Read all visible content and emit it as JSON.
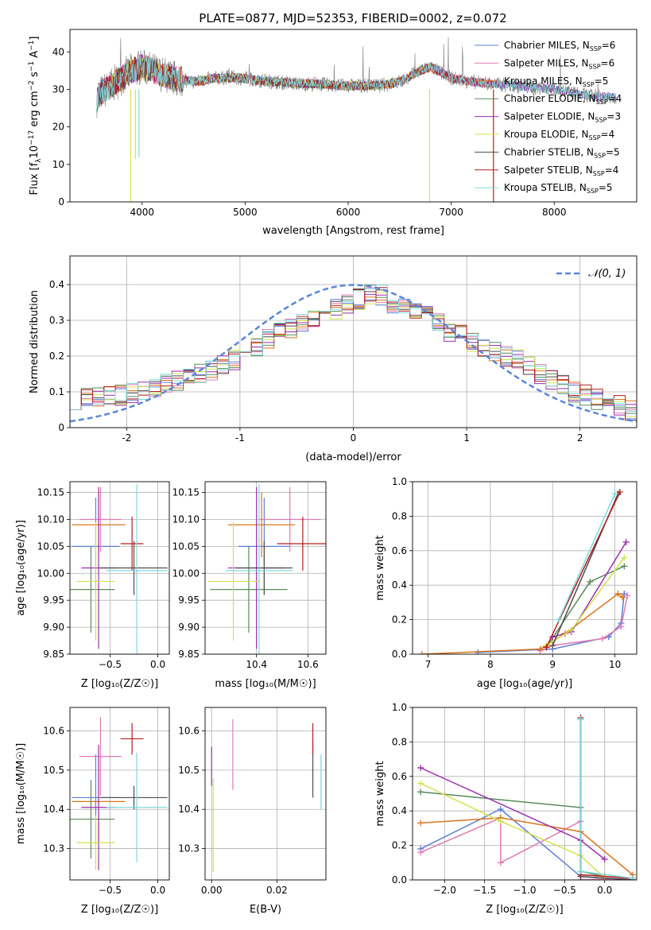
{
  "figure_title": "PLATE=0877, MJD=52353, FIBERID=0002, z=0.072",
  "colors": {
    "Chabrier MILES": "#5b7fd6",
    "Salpeter MILES": "#e07ab3",
    "Kroupa MILES": "#d9761e",
    "Chabrier ELODIE": "#5a8a5a",
    "Salpeter ELODIE": "#9b2fae",
    "Kroupa ELODIE": "#d6e04a",
    "Chabrier STELIB": "#4d4d4d",
    "Salpeter STELIB": "#b41e1e",
    "Kroupa STELIB": "#7fd8dc",
    "normal": "#5b86d8",
    "data_spectrum": "#8a8a8a"
  },
  "chart_data": [
    {
      "id": "spectrum",
      "type": "line",
      "title": "PLATE=0877, MJD=52353, FIBERID=0002, z=0.072",
      "xlabel": "wavelength [Angstrom, rest frame]",
      "ylabel_parts": [
        "Flux [f",
        "λ",
        "10",
        "−17",
        " erg cm",
        "−2",
        " s",
        "−1",
        " A",
        "−1",
        "]"
      ],
      "xlim": [
        3300,
        8800
      ],
      "ylim": [
        0,
        46
      ],
      "xticks": [
        4000,
        5000,
        6000,
        7000,
        8000
      ],
      "yticks": [
        0,
        10,
        20,
        30,
        40
      ],
      "grid": false,
      "legend_position": "top-right",
      "legend": [
        {
          "name": "Chabrier MILES",
          "nssp": "6"
        },
        {
          "name": "Salpeter MILES",
          "nssp": "6"
        },
        {
          "name": "Kroupa MILES",
          "nssp": "5"
        },
        {
          "name": "Chabrier ELODIE",
          "nssp": "4"
        },
        {
          "name": "Salpeter ELODIE",
          "nssp": "3"
        },
        {
          "name": "Kroupa ELODIE",
          "nssp": "4"
        },
        {
          "name": "Chabrier STELIB",
          "nssp": "5"
        },
        {
          "name": "Salpeter STELIB",
          "nssp": "4"
        },
        {
          "name": "Kroupa STELIB",
          "nssp": "5"
        }
      ],
      "continuum_wavelength": [
        3550,
        3600,
        3700,
        3800,
        3900,
        4000,
        4100,
        4200,
        4300,
        4400,
        4500,
        4700,
        4900,
        5100,
        5300,
        5500,
        5700,
        5900,
        6100,
        6300,
        6500,
        6700,
        6800,
        7000,
        7200,
        7400,
        7600,
        7800,
        8000,
        8200,
        8400,
        8500
      ],
      "continuum_flux": [
        27,
        29,
        31,
        33,
        35,
        36,
        35,
        34,
        33,
        32.5,
        32,
        33,
        33.2,
        32.5,
        32,
        31.5,
        31.5,
        31,
        31,
        31,
        32,
        35,
        36,
        33,
        32,
        31.5,
        31,
        30.5,
        30,
        29,
        28,
        28
      ],
      "dips": [
        {
          "x": 3890,
          "y": 0.0,
          "series": "Kroupa ELODIE"
        },
        {
          "x": 3935,
          "y": 11.5,
          "series": "Kroupa ELODIE"
        },
        {
          "x": 3970,
          "y": 12.0,
          "series": "Kroupa STELIB"
        },
        {
          "x": 6790,
          "y": 0.0,
          "series": "Kroupa ELODIE"
        },
        {
          "x": 7410,
          "y": 0.0,
          "series": "Salpeter STELIB"
        }
      ]
    },
    {
      "id": "residuals",
      "type": "histogram",
      "xlabel": "(data-model)/error",
      "ylabel": "Normed distribution",
      "xlim": [
        -2.5,
        2.5
      ],
      "ylim": [
        0,
        0.48
      ],
      "xticks": [
        -2,
        -1,
        0,
        1,
        2
      ],
      "yticks": [
        0.0,
        0.1,
        0.2,
        0.3,
        0.4
      ],
      "grid": true,
      "legend_position": "top-right",
      "normal_label": "𝒩(0, 1)",
      "bin_edges_start": -2.5,
      "bin_width": 0.1,
      "n_bins": 50,
      "base_heights": [
        0.08,
        0.08,
        0.09,
        0.09,
        0.09,
        0.1,
        0.1,
        0.11,
        0.12,
        0.13,
        0.14,
        0.15,
        0.16,
        0.18,
        0.19,
        0.21,
        0.23,
        0.25,
        0.27,
        0.28,
        0.29,
        0.31,
        0.32,
        0.33,
        0.35,
        0.36,
        0.37,
        0.37,
        0.35,
        0.34,
        0.32,
        0.31,
        0.29,
        0.27,
        0.26,
        0.24,
        0.22,
        0.21,
        0.2,
        0.19,
        0.17,
        0.15,
        0.13,
        0.12,
        0.1,
        0.09,
        0.08,
        0.07,
        0.06,
        0.05
      ]
    },
    {
      "id": "age_vs_Z",
      "type": "errorbar",
      "xlabel": "Z [log₁₀(Z/Z☉)]",
      "ylabel": "age  [log₁₀(age/yr)]",
      "xlim": [
        -0.92,
        0.12
      ],
      "ylim": [
        9.85,
        10.17
      ],
      "xticks": [
        -0.5,
        0.0
      ],
      "xticklabels": [
        "−0.5",
        "0.0"
      ],
      "yticks": [
        9.85,
        9.9,
        9.95,
        10.0,
        10.05,
        10.1,
        10.15
      ],
      "yticklabels": [
        "9.85",
        "9.90",
        "9.95",
        "10.00",
        "10.05",
        "10.10",
        "10.15"
      ],
      "points": [
        {
          "series": "Chabrier MILES",
          "x": -0.65,
          "xerr": 0.25,
          "y": 10.05,
          "yerr": 0.09
        },
        {
          "series": "Salpeter MILES",
          "x": -0.6,
          "xerr": 0.22,
          "y": 10.1,
          "yerr": 0.06
        },
        {
          "series": "Kroupa MILES",
          "x": -0.62,
          "xerr": 0.28,
          "y": 10.09,
          "yerr": 0.06
        },
        {
          "series": "Chabrier ELODIE",
          "x": -0.7,
          "xerr": 0.25,
          "y": 9.97,
          "yerr": 0.08
        },
        {
          "series": "Salpeter ELODIE",
          "x": -0.62,
          "xerr": 0.18,
          "y": 10.01,
          "yerr": 0.15
        },
        {
          "series": "Kroupa ELODIE",
          "x": -0.65,
          "xerr": 0.2,
          "y": 9.985,
          "yerr": 0.11
        },
        {
          "series": "Chabrier STELIB",
          "x": -0.25,
          "xerr": 0.35,
          "y": 10.01,
          "yerr": 0.05
        },
        {
          "series": "Salpeter STELIB",
          "x": -0.27,
          "xerr": 0.12,
          "y": 10.055,
          "yerr": 0.05
        },
        {
          "series": "Kroupa STELIB",
          "x": -0.22,
          "xerr": 0.32,
          "y": 10.005,
          "yerr": 0.16
        }
      ]
    },
    {
      "id": "age_vs_mass",
      "type": "errorbar",
      "xlabel": "mass [log₁₀(M/M☉)]",
      "ylabel": "",
      "xlim": [
        10.2,
        10.67
      ],
      "ylim": [
        9.85,
        10.17
      ],
      "xticks": [
        10.4,
        10.6
      ],
      "xticklabels": [
        "10.4",
        "10.6"
      ],
      "yticks": [
        9.85,
        9.9,
        9.95,
        10.0,
        10.05,
        10.1,
        10.15
      ],
      "yticklabels": [
        "9.85",
        "9.90",
        "9.95",
        "10.00",
        "10.05",
        "10.10",
        "10.15"
      ],
      "points": [
        {
          "series": "Chabrier MILES",
          "x": 10.43,
          "xerr": 0.1,
          "y": 10.05,
          "yerr": 0.09
        },
        {
          "series": "Salpeter MILES",
          "x": 10.53,
          "xerr": 0.12,
          "y": 10.1,
          "yerr": 0.06
        },
        {
          "series": "Kroupa MILES",
          "x": 10.42,
          "xerr": 0.13,
          "y": 10.09,
          "yerr": 0.06
        },
        {
          "series": "Chabrier ELODIE",
          "x": 10.37,
          "xerr": 0.15,
          "y": 9.97,
          "yerr": 0.08
        },
        {
          "series": "Salpeter ELODIE",
          "x": 10.4,
          "xerr": 0.11,
          "y": 10.01,
          "yerr": 0.15
        },
        {
          "series": "Kroupa ELODIE",
          "x": 10.31,
          "xerr": 0.1,
          "y": 9.985,
          "yerr": 0.11
        },
        {
          "series": "Chabrier STELIB",
          "x": 10.43,
          "xerr": 0.11,
          "y": 10.01,
          "yerr": 0.05
        },
        {
          "series": "Salpeter STELIB",
          "x": 10.58,
          "xerr": 0.1,
          "y": 10.055,
          "yerr": 0.05
        },
        {
          "series": "Kroupa STELIB",
          "x": 10.41,
          "xerr": 0.13,
          "y": 10.005,
          "yerr": 0.16
        }
      ]
    },
    {
      "id": "weight_vs_age",
      "type": "line",
      "xlabel": "age  [log₁₀(age/yr)]",
      "ylabel": "mass weight",
      "xlim": [
        6.75,
        10.35
      ],
      "ylim": [
        0,
        1.0
      ],
      "xticks": [
        7,
        8,
        9,
        10
      ],
      "xticklabels": [
        "7",
        "8",
        "9",
        "10"
      ],
      "yticks": [
        0,
        0.2,
        0.4,
        0.6,
        0.8,
        1.0
      ],
      "yticklabels": [
        "0.0",
        "0.2",
        "0.4",
        "0.6",
        "0.8",
        "1.0"
      ],
      "grid": true,
      "series": [
        {
          "name": "Chabrier MILES",
          "x": [
            7.8,
            9.0,
            9.9,
            10.1,
            10.15
          ],
          "y": [
            0.01,
            0.03,
            0.1,
            0.18,
            0.35
          ]
        },
        {
          "name": "Salpeter MILES",
          "x": [
            8.8,
            9.0,
            9.8,
            10.1,
            10.2
          ],
          "y": [
            0.02,
            0.05,
            0.09,
            0.16,
            0.34
          ]
        },
        {
          "name": "Kroupa MILES",
          "x": [
            6.9,
            8.8,
            9.2,
            10.05,
            10.12
          ],
          "y": [
            0.0,
            0.03,
            0.12,
            0.35,
            0.33
          ]
        },
        {
          "name": "Chabrier ELODIE",
          "x": [
            8.9,
            9.6,
            10.15
          ],
          "y": [
            0.04,
            0.42,
            0.51
          ]
        },
        {
          "name": "Salpeter ELODIE",
          "x": [
            9.0,
            9.3,
            10.18
          ],
          "y": [
            0.1,
            0.13,
            0.65
          ]
        },
        {
          "name": "Kroupa ELODIE",
          "x": [
            8.9,
            9.3,
            10.15
          ],
          "y": [
            0.05,
            0.14,
            0.56
          ]
        },
        {
          "name": "Chabrier STELIB",
          "x": [
            9.0,
            10.05
          ],
          "y": [
            0.05,
            0.93
          ]
        },
        {
          "name": "Salpeter STELIB",
          "x": [
            8.9,
            10.08
          ],
          "y": [
            0.04,
            0.94
          ]
        },
        {
          "name": "Kroupa STELIB",
          "x": [
            9.1,
            10.0
          ],
          "y": [
            0.2,
            0.93
          ]
        }
      ]
    },
    {
      "id": "mass_vs_Z",
      "type": "errorbar",
      "xlabel": "Z [log₁₀(Z/Z☉)]",
      "ylabel": "mass [log₁₀(M/M☉)]",
      "xlim": [
        -0.92,
        0.12
      ],
      "ylim": [
        10.22,
        10.66
      ],
      "xticks": [
        -0.5,
        0.0
      ],
      "xticklabels": [
        "−0.5",
        "0.0"
      ],
      "yticks": [
        10.3,
        10.4,
        10.5,
        10.6
      ],
      "yticklabels": [
        "10.3",
        "10.4",
        "10.5",
        "10.6"
      ],
      "points": [
        {
          "series": "Chabrier MILES",
          "x": -0.65,
          "xerr": 0.25,
          "y": 10.43,
          "yerr": 0.11
        },
        {
          "series": "Salpeter MILES",
          "x": -0.6,
          "xerr": 0.22,
          "y": 10.535,
          "yerr": 0.1
        },
        {
          "series": "Kroupa MILES",
          "x": -0.62,
          "xerr": 0.28,
          "y": 10.42,
          "yerr": 0.11
        },
        {
          "series": "Chabrier ELODIE",
          "x": -0.7,
          "xerr": 0.25,
          "y": 10.375,
          "yerr": 0.1
        },
        {
          "series": "Salpeter ELODIE",
          "x": -0.62,
          "xerr": 0.18,
          "y": 10.405,
          "yerr": 0.16
        },
        {
          "series": "Kroupa ELODIE",
          "x": -0.65,
          "xerr": 0.2,
          "y": 10.315,
          "yerr": 0.07
        },
        {
          "series": "Chabrier STELIB",
          "x": -0.25,
          "xerr": 0.35,
          "y": 10.43,
          "yerr": 0.03
        },
        {
          "series": "Salpeter STELIB",
          "x": -0.27,
          "xerr": 0.12,
          "y": 10.58,
          "yerr": 0.04
        },
        {
          "series": "Kroupa STELIB",
          "x": -0.22,
          "xerr": 0.32,
          "y": 10.405,
          "yerr": 0.14
        }
      ]
    },
    {
      "id": "mass_vs_EBV",
      "type": "errorbar",
      "xlabel": "E(B-V)",
      "ylabel": "",
      "xlim": [
        -0.002,
        0.035
      ],
      "ylim": [
        10.22,
        10.66
      ],
      "xticks": [
        0.0,
        0.02
      ],
      "xticklabels": [
        "0.00",
        "0.02"
      ],
      "yticks": [
        10.3,
        10.4,
        10.5,
        10.6
      ],
      "yticklabels": [
        "10.3",
        "10.4",
        "10.5",
        "10.6"
      ],
      "points": [
        {
          "series": "Salpeter ELODIE",
          "x": 0.0,
          "xerr": 0,
          "y": 10.51,
          "yerr": 0.05
        },
        {
          "series": "Kroupa ELODIE",
          "x": 0.0005,
          "xerr": 0,
          "y": 10.36,
          "yerr": 0.12
        },
        {
          "series": "Salpeter MILES",
          "x": 0.0065,
          "xerr": 0,
          "y": 10.54,
          "yerr": 0.09
        },
        {
          "series": "Chabrier STELIB",
          "x": 0.031,
          "xerr": 0,
          "y": 10.5,
          "yerr": 0.07
        },
        {
          "series": "Salpeter STELIB",
          "x": 0.031,
          "xerr": 0,
          "y": 10.58,
          "yerr": 0.04
        },
        {
          "series": "Kroupa STELIB",
          "x": 0.0335,
          "xerr": 0,
          "y": 10.47,
          "yerr": 0.07
        }
      ]
    },
    {
      "id": "weight_vs_Z",
      "type": "line",
      "xlabel": "Z [log₁₀(Z/Z☉)]",
      "ylabel": "mass weight",
      "xlim": [
        -2.4,
        0.4
      ],
      "ylim": [
        0,
        1.0
      ],
      "xticks": [
        -2.0,
        -1.5,
        -1.0,
        -0.5,
        0.0
      ],
      "xticklabels": [
        "−2.0",
        "−1.5",
        "−1.0",
        "−0.5",
        "0.0"
      ],
      "yticks": [
        0,
        0.2,
        0.4,
        0.6,
        0.8,
        1.0
      ],
      "yticklabels": [
        "0.0",
        "0.2",
        "0.4",
        "0.6",
        "0.8",
        "1.0"
      ],
      "grid": true,
      "series": [
        {
          "name": "Chabrier MILES",
          "x": [
            -2.3,
            -1.3,
            -0.3,
            0.35
          ],
          "y": [
            0.18,
            0.41,
            0.02,
            0.0
          ]
        },
        {
          "name": "Salpeter MILES",
          "x": [
            -2.3,
            -1.3,
            -1.3,
            -0.3,
            -0.3,
            0.35
          ],
          "y": [
            0.16,
            0.36,
            0.1,
            0.34,
            0.0,
            0.01
          ]
        },
        {
          "name": "Kroupa MILES",
          "x": [
            -2.3,
            -1.3,
            -0.3,
            0.35
          ],
          "y": [
            0.33,
            0.36,
            0.28,
            0.03
          ]
        },
        {
          "name": "Chabrier ELODIE",
          "x": [
            -2.3,
            -0.3,
            -0.3,
            0.0
          ],
          "y": [
            0.51,
            0.42,
            0.05,
            0.02
          ]
        },
        {
          "name": "Salpeter ELODIE",
          "x": [
            -2.3,
            -0.3,
            0.0
          ],
          "y": [
            0.65,
            0.23,
            0.12
          ]
        },
        {
          "name": "Kroupa ELODIE",
          "x": [
            -2.3,
            -1.3,
            -0.3,
            0.0
          ],
          "y": [
            0.56,
            0.34,
            0.14,
            0.01
          ]
        },
        {
          "name": "Chabrier STELIB",
          "x": [
            -0.3,
            -0.3,
            0.35
          ],
          "y": [
            0.93,
            0.02,
            0.0
          ]
        },
        {
          "name": "Salpeter STELIB",
          "x": [
            -0.3,
            -0.3,
            0.35
          ],
          "y": [
            0.94,
            0.03,
            0.01
          ]
        },
        {
          "name": "Kroupa STELIB",
          "x": [
            -0.3,
            -0.3,
            0.35
          ],
          "y": [
            0.93,
            0.05,
            0.01
          ]
        }
      ]
    }
  ]
}
